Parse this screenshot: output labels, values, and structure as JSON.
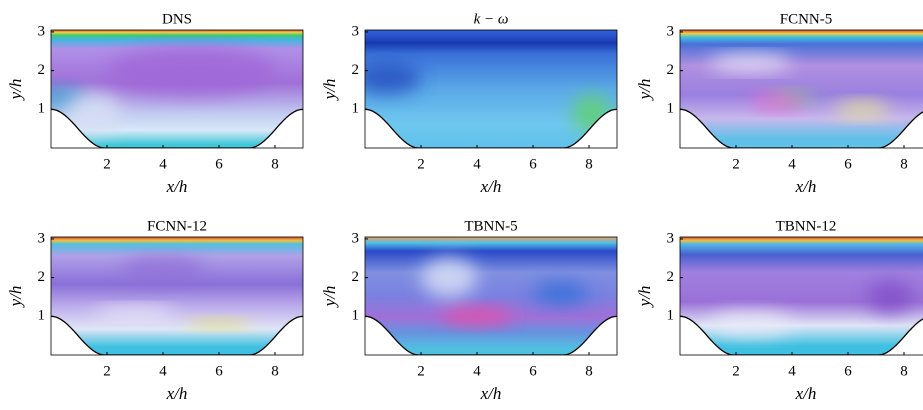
{
  "chart_data": [
    {
      "type": "field",
      "title": "DNS",
      "xlabel": "x/h",
      "ylabel": "y/h",
      "xlim": [
        0,
        9
      ],
      "ylim": [
        0,
        3.05
      ],
      "xticks": [
        2,
        4,
        6,
        8
      ],
      "yticks": [
        1,
        2,
        3
      ]
    },
    {
      "type": "field",
      "title": "k − ω",
      "xlabel": "x/h",
      "ylabel": "y/h",
      "xlim": [
        0,
        9
      ],
      "ylim": [
        0,
        3.05
      ],
      "xticks": [
        2,
        4,
        6,
        8
      ],
      "yticks": [
        1,
        2,
        3
      ]
    },
    {
      "type": "field",
      "title": "FCNN-5",
      "xlabel": "x/h",
      "ylabel": "y/h",
      "xlim": [
        0,
        9
      ],
      "ylim": [
        0,
        3.05
      ],
      "xticks": [
        2,
        4,
        6,
        8
      ],
      "yticks": [
        1,
        2,
        3
      ]
    },
    {
      "type": "field",
      "title": "FCNN-12",
      "xlabel": "x/h",
      "ylabel": "y/h",
      "xlim": [
        0,
        9
      ],
      "ylim": [
        0,
        3.05
      ],
      "xticks": [
        2,
        4,
        6,
        8
      ],
      "yticks": [
        1,
        2,
        3
      ]
    },
    {
      "type": "field",
      "title": "TBNN-5",
      "xlabel": "x/h",
      "ylabel": "y/h",
      "xlim": [
        0,
        9
      ],
      "ylim": [
        0,
        3.05
      ],
      "xticks": [
        2,
        4,
        6,
        8
      ],
      "yticks": [
        1,
        2,
        3
      ]
    },
    {
      "type": "field",
      "title": "TBNN-12",
      "xlabel": "x/h",
      "ylabel": "y/h",
      "xlim": [
        0,
        9
      ],
      "ylim": [
        0,
        3.05
      ],
      "xticks": [
        2,
        4,
        6,
        8
      ],
      "yticks": [
        1,
        2,
        3
      ]
    }
  ]
}
